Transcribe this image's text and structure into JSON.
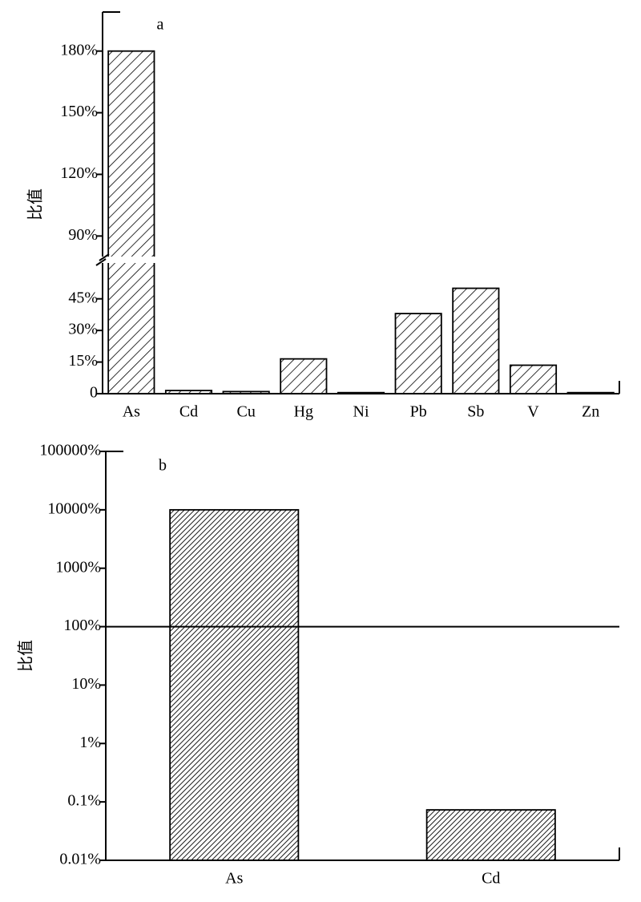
{
  "chart_data": [
    {
      "type": "bar",
      "annotation": "a",
      "ylabel": "比值",
      "categories": [
        "As",
        "Cd",
        "Cu",
        "Hg",
        "Ni",
        "Pb",
        "Sb",
        "V",
        "Zn"
      ],
      "values": [
        180,
        1.5,
        1,
        16.5,
        0.5,
        38,
        50,
        13.5,
        0.5
      ],
      "color": "#000000",
      "ylim": [
        0,
        199
      ],
      "ybreak": [
        62,
        80
      ],
      "yticks": [
        0,
        {
          "value": 15,
          "label": "15%"
        },
        {
          "value": 30,
          "label": "30%"
        },
        {
          "value": 45,
          "label": "45%"
        },
        {
          "value": 90,
          "label": "90%"
        },
        {
          "value": 120,
          "label": "120%"
        },
        {
          "value": 150,
          "label": "150%"
        },
        {
          "value": 180,
          "label": "180%"
        }
      ]
    },
    {
      "type": "bar",
      "annotation": "b",
      "ylabel": "比值",
      "categories": [
        "As",
        "Cd"
      ],
      "values": [
        10000,
        0.073
      ],
      "color": "#000000",
      "log_scale": true,
      "reference_line": 100,
      "ylim": [
        0.01,
        100000
      ],
      "yticks": [
        {
          "value": 0.01,
          "label": "0.01%"
        },
        {
          "value": 0.1,
          "label": "0.1%"
        },
        {
          "value": 1,
          "label": "1%"
        },
        {
          "value": 10,
          "label": "10%"
        },
        {
          "value": 100,
          "label": "100%"
        },
        {
          "value": 1000,
          "label": "1000%"
        },
        {
          "value": 10000,
          "label": "10000%"
        },
        {
          "value": 100000,
          "label": "100000%"
        }
      ]
    }
  ]
}
